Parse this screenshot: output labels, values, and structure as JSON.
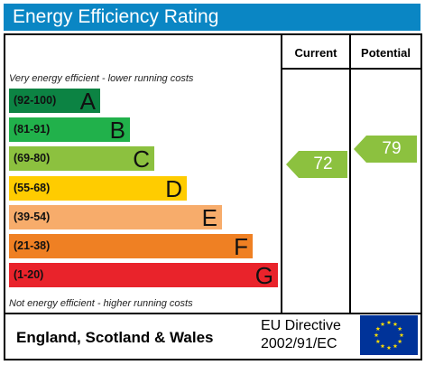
{
  "header": {
    "title": "Energy Efficiency Rating"
  },
  "columns": {
    "current": "Current",
    "potential": "Potential"
  },
  "captions": {
    "top": "Very energy efficient - lower running costs",
    "bottom": "Not energy efficient - higher running costs"
  },
  "bands": [
    {
      "range": "(92-100)",
      "letter": "A",
      "color": "#0c8343"
    },
    {
      "range": "(81-91)",
      "letter": "B",
      "color": "#21b14b"
    },
    {
      "range": "(69-80)",
      "letter": "C",
      "color": "#8cc13f"
    },
    {
      "range": "(55-68)",
      "letter": "D",
      "color": "#ffcc00"
    },
    {
      "range": "(39-54)",
      "letter": "E",
      "color": "#f7ac6b"
    },
    {
      "range": "(21-38)",
      "letter": "F",
      "color": "#ef8023"
    },
    {
      "range": "(1-20)",
      "letter": "G",
      "color": "#e9232b"
    }
  ],
  "ratings": {
    "current": {
      "value": "72",
      "band": "C",
      "color": "#8cc13f"
    },
    "potential": {
      "value": "79",
      "band": "C",
      "color": "#8cc13f"
    }
  },
  "footer": {
    "region": "England, Scotland & Wales",
    "directive_line1": "EU Directive",
    "directive_line2": "2002/91/EC",
    "flag_icon": "eu-flag-icon",
    "flag_color": "#003399",
    "star_color": "#ffdd00"
  }
}
